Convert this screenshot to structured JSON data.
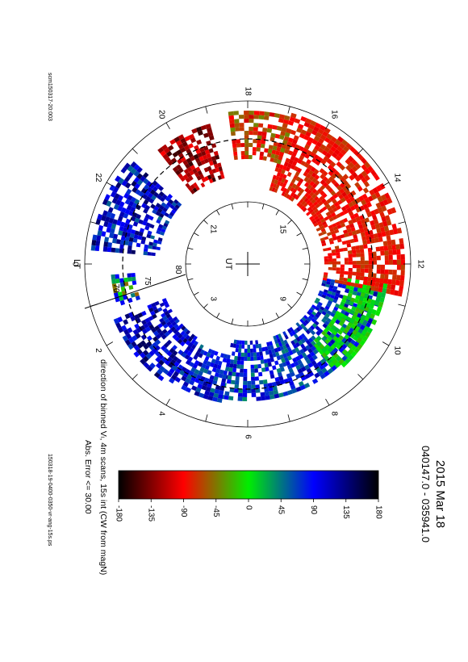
{
  "header": {
    "date": "2015 Mar 18",
    "time_range": "040147.0 - 035941.0"
  },
  "footer": {
    "left_id": "scm150317-20:003",
    "right_id": "150318-19-0400-0350-vr-ang-15s.ps"
  },
  "plot": {
    "caption": "direction of binned Vₗ, 4m scans, 15s int (CW from magN)",
    "error_note": "Abs. Error <= 30.00",
    "outer_lt_labels": [
      {
        "label": "0",
        "hour": 0
      },
      {
        "label": "2",
        "hour": 2
      },
      {
        "label": "4",
        "hour": 4
      },
      {
        "label": "6",
        "hour": 6
      },
      {
        "label": "8",
        "hour": 8
      },
      {
        "label": "10",
        "hour": 10
      },
      {
        "label": "12",
        "hour": 12
      },
      {
        "label": "14",
        "hour": 14
      },
      {
        "label": "16",
        "hour": 16
      },
      {
        "label": "18",
        "hour": 18
      },
      {
        "label": "20",
        "hour": 20
      },
      {
        "label": "22",
        "hour": 22
      }
    ],
    "outer_lt_title": "LT",
    "inner_ut_labels": [
      {
        "label": "3",
        "hour": 3
      },
      {
        "label": "9",
        "hour": 9
      },
      {
        "label": "15",
        "hour": 15
      },
      {
        "label": "21",
        "hour": 21
      }
    ],
    "inner_ut_title": "UT",
    "lat_labels": [
      "70",
      "75",
      "80"
    ]
  },
  "colorbar": {
    "ticks": [
      "-180",
      "-135",
      "-90",
      "-45",
      "0",
      "45",
      "90",
      "135",
      "180"
    ],
    "colors": [
      "#000000",
      "#ff0000",
      "#00ee00",
      "#0000ff",
      "#000000"
    ]
  }
}
